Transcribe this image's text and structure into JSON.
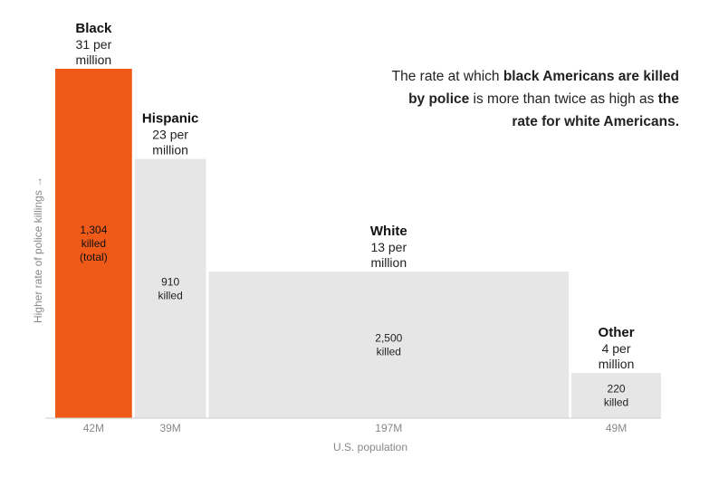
{
  "annotation": {
    "part1": "The rate at which ",
    "bold1": "black Americans are killed by police",
    "part2": " is more than twice as high as ",
    "bold2": "the rate for white Americans."
  },
  "chart_data": {
    "type": "bar",
    "variant": "variable-width (marimekko)",
    "ylabel": "Higher rate of police killings →",
    "xlabel": "U.S. population",
    "categories": [
      "Black",
      "Hispanic",
      "White",
      "Other"
    ],
    "rate_labels": [
      "31 per million",
      "23 per million",
      "13 per million",
      "4 per million"
    ],
    "rate_label_lines": [
      [
        "31 per",
        "million"
      ],
      [
        "23 per",
        "million"
      ],
      [
        "13 per",
        "million"
      ],
      [
        "4 per",
        "million"
      ]
    ],
    "values": [
      31,
      23,
      13,
      4
    ],
    "population_millions": [
      42,
      39,
      197,
      49
    ],
    "population_labels": [
      "42M",
      "39M",
      "197M",
      "49M"
    ],
    "killed": [
      1304,
      910,
      2500,
      220
    ],
    "killed_label_lines": [
      [
        "1,304",
        "killed",
        "(total)"
      ],
      [
        "910",
        "killed"
      ],
      [
        "2,500",
        "killed"
      ],
      [
        "220",
        "killed"
      ]
    ],
    "ylim": [
      0,
      31
    ],
    "colors": [
      "#f05a19",
      "#e6e6e6",
      "#e6e6e6",
      "#e6e6e6"
    ],
    "grid": false,
    "legend": "none"
  }
}
